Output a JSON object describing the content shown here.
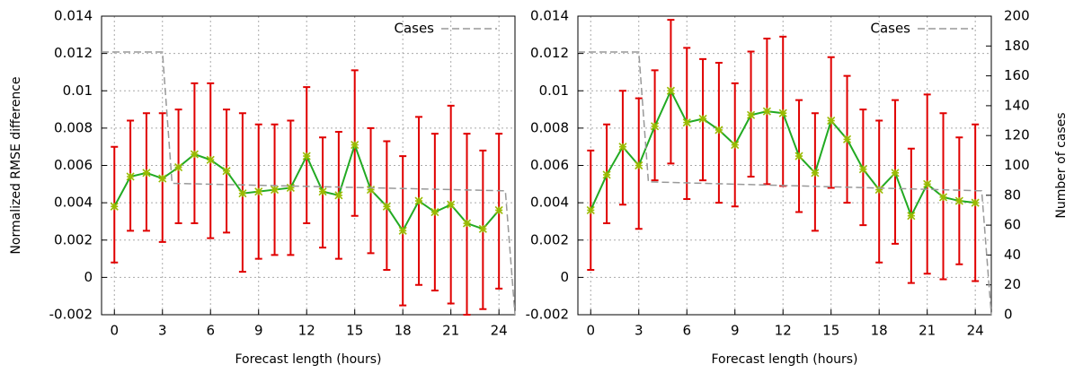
{
  "chart_data": [
    {
      "type": "errorline",
      "xlabel": "Forecast length (hours)",
      "ylabel": "Normalized RMSE difference",
      "xlim": [
        -0.8,
        25
      ],
      "xticks": [
        0,
        3,
        6,
        9,
        12,
        15,
        18,
        21,
        24
      ],
      "ylim": [
        -0.002,
        0.014
      ],
      "yticks": [
        -0.002,
        0,
        0.002,
        0.004,
        0.006,
        0.008,
        0.01,
        0.012,
        0.014
      ],
      "y2lim": [
        0,
        200
      ],
      "grid": true,
      "legend": "top-right",
      "series": [
        {
          "color": "#22aa22",
          "error_color": "#e00000",
          "marker_color": "#99bb00",
          "x": [
            0,
            1,
            2,
            3,
            4,
            5,
            6,
            7,
            8,
            9,
            10,
            11,
            12,
            13,
            14,
            15,
            16,
            17,
            18,
            19,
            20,
            21,
            22,
            23,
            24
          ],
          "values": [
            0.0038,
            0.0054,
            0.0056,
            0.0053,
            0.0059,
            0.0066,
            0.0063,
            0.0057,
            0.0045,
            0.0046,
            0.0047,
            0.0048,
            0.0065,
            0.0046,
            0.0044,
            0.0071,
            0.0047,
            0.0038,
            0.0025,
            0.0041,
            0.0035,
            0.0039,
            0.0029,
            0.0026,
            0.0036
          ],
          "lower": [
            0.0008,
            0.0025,
            0.0025,
            0.0019,
            0.0029,
            0.0029,
            0.0021,
            0.0024,
            0.0003,
            0.001,
            0.0012,
            0.0012,
            0.0029,
            0.0016,
            0.001,
            0.0033,
            0.0013,
            0.0004,
            -0.0015,
            -0.0004,
            -0.0007,
            -0.0014,
            -0.002,
            -0.0017,
            -0.0006
          ],
          "upper": [
            0.007,
            0.0084,
            0.0088,
            0.0088,
            0.009,
            0.0104,
            0.0104,
            0.009,
            0.0088,
            0.0082,
            0.0082,
            0.0084,
            0.0102,
            0.0075,
            0.0078,
            0.0111,
            0.008,
            0.0073,
            0.0065,
            0.0086,
            0.0077,
            0.0092,
            0.0077,
            0.0068,
            0.0077
          ]
        },
        {
          "name": "Cases",
          "axis": "y2",
          "color": "#999999",
          "dashed": true,
          "x": [
            -0.8,
            3,
            3.6,
            24.4,
            25
          ],
          "values": [
            176,
            176,
            88,
            83,
            0
          ]
        }
      ]
    },
    {
      "type": "errorline",
      "xlabel": "Forecast length (hours)",
      "y2label": "Number of cases",
      "xlim": [
        -0.8,
        25
      ],
      "xticks": [
        0,
        3,
        6,
        9,
        12,
        15,
        18,
        21,
        24
      ],
      "ylim": [
        -0.002,
        0.014
      ],
      "yticks": [
        -0.002,
        0,
        0.002,
        0.004,
        0.006,
        0.008,
        0.01,
        0.012,
        0.014
      ],
      "y2lim": [
        0,
        200
      ],
      "y2ticks": [
        0,
        20,
        40,
        60,
        80,
        100,
        120,
        140,
        160,
        180,
        200
      ],
      "grid": true,
      "legend": "top-right",
      "series": [
        {
          "color": "#22aa22",
          "error_color": "#e00000",
          "marker_color": "#99bb00",
          "x": [
            0,
            1,
            2,
            3,
            4,
            5,
            6,
            7,
            8,
            9,
            10,
            11,
            12,
            13,
            14,
            15,
            16,
            17,
            18,
            19,
            20,
            21,
            22,
            23,
            24
          ],
          "values": [
            0.0036,
            0.0055,
            0.007,
            0.006,
            0.0081,
            0.01,
            0.0083,
            0.0085,
            0.0079,
            0.0071,
            0.0087,
            0.0089,
            0.0088,
            0.0065,
            0.0056,
            0.0084,
            0.0074,
            0.0058,
            0.0047,
            0.0056,
            0.0033,
            0.005,
            0.0043,
            0.0041,
            0.004
          ],
          "lower": [
            0.0004,
            0.0029,
            0.0039,
            0.0026,
            0.0052,
            0.0061,
            0.0042,
            0.0052,
            0.004,
            0.0038,
            0.0054,
            0.005,
            0.0049,
            0.0035,
            0.0025,
            0.0048,
            0.004,
            0.0028,
            0.0008,
            0.0018,
            -0.0003,
            0.0002,
            -0.0001,
            0.0007,
            -0.0002
          ],
          "upper": [
            0.0068,
            0.0082,
            0.01,
            0.0096,
            0.0111,
            0.0138,
            0.0123,
            0.0117,
            0.0115,
            0.0104,
            0.0121,
            0.0128,
            0.0129,
            0.0095,
            0.0088,
            0.0118,
            0.0108,
            0.009,
            0.0084,
            0.0095,
            0.0069,
            0.0098,
            0.0088,
            0.0075,
            0.0082
          ]
        },
        {
          "name": "Cases",
          "axis": "y2",
          "color": "#999999",
          "dashed": true,
          "x": [
            -0.8,
            3,
            3.6,
            24.4,
            25
          ],
          "values": [
            176,
            176,
            89,
            83,
            0
          ]
        }
      ]
    }
  ]
}
